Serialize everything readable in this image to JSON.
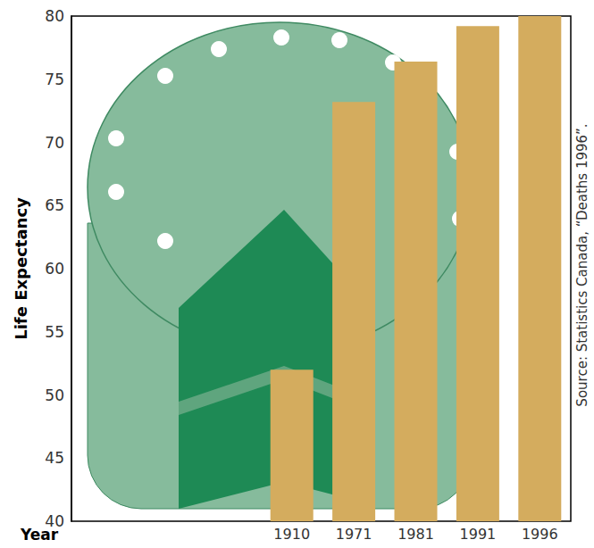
{
  "chart_data": {
    "type": "bar",
    "y_label": "Life Expectancy",
    "x_label": "Year",
    "source": "Source: Statistics Canada, “Deaths 1996”.",
    "categories": [
      "1910",
      "1971",
      "1981",
      "1991",
      "1996"
    ],
    "values": [
      52,
      73.2,
      76.4,
      79.2,
      80
    ],
    "color": "#d4ac5e",
    "ylim": [
      40,
      80
    ],
    "yticks": [
      40,
      45,
      50,
      55,
      60,
      65,
      70,
      75,
      80
    ],
    "grid": false
  }
}
